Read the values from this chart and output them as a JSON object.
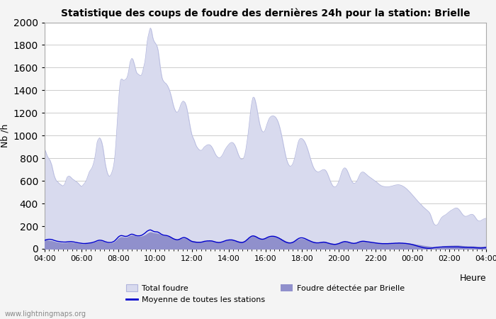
{
  "title": "Statistique des coups de foudre des dernières 24h pour la station: Brielle",
  "xlabel": "Heure",
  "ylabel": "Nb /h",
  "watermark": "www.lightningmaps.org",
  "ylim": [
    0,
    2000
  ],
  "yticks": [
    0,
    200,
    400,
    600,
    800,
    1000,
    1200,
    1400,
    1600,
    1800,
    2000
  ],
  "xtick_labels": [
    "04:00",
    "06:00",
    "08:00",
    "10:00",
    "12:00",
    "14:00",
    "16:00",
    "18:00",
    "20:00",
    "22:00",
    "00:00",
    "02:00",
    "04:00"
  ],
  "bg_color": "#f4f4f4",
  "plot_bg_color": "#ffffff",
  "total_foudre_color": "#d8daee",
  "total_foudre_edge_color": "#b0b4dc",
  "brielle_color": "#9090cc",
  "moyenne_color": "#0000cc",
  "total_foudre": [
    880,
    865,
    845,
    825,
    810,
    800,
    790,
    780,
    760,
    740,
    710,
    680,
    650,
    630,
    615,
    600,
    595,
    590,
    580,
    575,
    570,
    565,
    560,
    555,
    560,
    565,
    580,
    600,
    620,
    635,
    640,
    642,
    640,
    635,
    628,
    620,
    615,
    610,
    605,
    600,
    595,
    590,
    585,
    578,
    570,
    563,
    557,
    550,
    555,
    563,
    572,
    580,
    590,
    603,
    620,
    640,
    660,
    678,
    690,
    700,
    710,
    725,
    745,
    770,
    800,
    840,
    890,
    940,
    960,
    970,
    980,
    975,
    960,
    940,
    910,
    870,
    820,
    770,
    730,
    700,
    672,
    655,
    643,
    640,
    648,
    660,
    678,
    700,
    730,
    775,
    840,
    930,
    1040,
    1150,
    1260,
    1360,
    1440,
    1490,
    1500,
    1498,
    1492,
    1488,
    1490,
    1495,
    1500,
    1510,
    1530,
    1560,
    1600,
    1645,
    1665,
    1680,
    1680,
    1668,
    1645,
    1620,
    1590,
    1565,
    1550,
    1545,
    1540,
    1535,
    1530,
    1530,
    1540,
    1560,
    1590,
    1620,
    1650,
    1700,
    1765,
    1830,
    1870,
    1900,
    1930,
    1950,
    1940,
    1910,
    1870,
    1845,
    1830,
    1820,
    1810,
    1800,
    1780,
    1750,
    1700,
    1645,
    1590,
    1545,
    1510,
    1490,
    1480,
    1470,
    1465,
    1460,
    1450,
    1440,
    1425,
    1410,
    1390,
    1365,
    1340,
    1310,
    1280,
    1255,
    1235,
    1220,
    1210,
    1205,
    1210,
    1220,
    1235,
    1255,
    1275,
    1290,
    1300,
    1305,
    1300,
    1295,
    1280,
    1260,
    1230,
    1195,
    1155,
    1115,
    1075,
    1040,
    1010,
    990,
    975,
    960,
    940,
    920,
    905,
    895,
    885,
    878,
    872,
    870,
    870,
    873,
    880,
    892,
    900,
    905,
    910,
    915,
    918,
    920,
    920,
    918,
    913,
    905,
    895,
    882,
    868,
    852,
    838,
    826,
    817,
    810,
    806,
    804,
    805,
    810,
    818,
    828,
    840,
    855,
    870,
    882,
    893,
    903,
    912,
    920,
    928,
    934,
    938,
    940,
    939,
    934,
    926,
    915,
    900,
    882,
    862,
    842,
    825,
    810,
    800,
    792,
    790,
    793,
    800,
    815,
    840,
    875,
    920,
    968,
    1020,
    1080,
    1145,
    1210,
    1265,
    1305,
    1335,
    1340,
    1332,
    1310,
    1280,
    1245,
    1205,
    1165,
    1128,
    1096,
    1070,
    1050,
    1038,
    1032,
    1033,
    1040,
    1055,
    1078,
    1100,
    1120,
    1138,
    1152,
    1162,
    1168,
    1172,
    1174,
    1174,
    1172,
    1168,
    1162,
    1152,
    1140,
    1125,
    1105,
    1082,
    1055,
    1025,
    992,
    958,
    922,
    886,
    852,
    820,
    792,
    770,
    752,
    740,
    732,
    730,
    733,
    740,
    752,
    770,
    793,
    820,
    850,
    882,
    915,
    942,
    960,
    970,
    975,
    975,
    972,
    966,
    958,
    948,
    934,
    918,
    900,
    880,
    858,
    835,
    810,
    786,
    764,
    744,
    726,
    712,
    700,
    692,
    686,
    682,
    680,
    680,
    682,
    686,
    690,
    694,
    698,
    700,
    700,
    698,
    692,
    682,
    668,
    652,
    634,
    616,
    598,
    582,
    568,
    557,
    550,
    547,
    547,
    550,
    557,
    568,
    582,
    600,
    620,
    643,
    665,
    685,
    700,
    710,
    715,
    714,
    708,
    698,
    684,
    668,
    650,
    633,
    616,
    601,
    590,
    582,
    578,
    578,
    582,
    590,
    600,
    614,
    630,
    646,
    660,
    670,
    676,
    678,
    678,
    675,
    670,
    664,
    658,
    652,
    645,
    640,
    635,
    630,
    625,
    620,
    615,
    610,
    605,
    600,
    595,
    590,
    584,
    578,
    572,
    567,
    562,
    558,
    555,
    553,
    551,
    550,
    549,
    548,
    548,
    548,
    548,
    549,
    550,
    552,
    553,
    555,
    557,
    559,
    561,
    563,
    564,
    565,
    566,
    566,
    565,
    564,
    562,
    559,
    556,
    552,
    548,
    543,
    538,
    532,
    526,
    519,
    512,
    505,
    498,
    490,
    482,
    474,
    466,
    458,
    450,
    442,
    434,
    426,
    418,
    411,
    404,
    397,
    390,
    382,
    375,
    368,
    362,
    356,
    350,
    344,
    338,
    332,
    325,
    315,
    300,
    280,
    260,
    240,
    225,
    215,
    210,
    208,
    210,
    215,
    225,
    238,
    252,
    265,
    275,
    282,
    288,
    292,
    296,
    300,
    305,
    310,
    316,
    322,
    328,
    333,
    338,
    342,
    346,
    350,
    354,
    358,
    360,
    361,
    360,
    356,
    350,
    342,
    332,
    322,
    312,
    303,
    296,
    291,
    288,
    287,
    288,
    290,
    293,
    296,
    300,
    303,
    305,
    305,
    303,
    298,
    290,
    280,
    270,
    260,
    252,
    248,
    246,
    246,
    248,
    252,
    256,
    260,
    264,
    266,
    268,
    270
  ],
  "brielle_foudre": [
    80,
    78,
    76,
    75,
    73,
    72,
    71,
    70,
    69,
    68,
    66,
    64,
    62,
    60,
    58,
    57,
    56,
    55,
    54,
    53,
    52,
    51,
    50,
    49,
    49,
    49,
    50,
    51,
    52,
    53,
    54,
    55,
    55,
    55,
    54,
    53,
    52,
    51,
    50,
    49,
    48,
    47,
    46,
    45,
    44,
    43,
    42,
    41,
    40,
    40,
    40,
    41,
    42,
    43,
    44,
    45,
    46,
    47,
    48,
    49,
    50,
    51,
    52,
    54,
    56,
    58,
    61,
    64,
    66,
    67,
    68,
    68,
    67,
    66,
    64,
    62,
    59,
    56,
    54,
    52,
    50,
    49,
    48,
    47,
    47,
    48,
    49,
    51,
    54,
    58,
    63,
    69,
    75,
    82,
    88,
    94,
    98,
    101,
    103,
    102,
    101,
    100,
    99,
    99,
    99,
    100,
    102,
    105,
    109,
    113,
    115,
    117,
    117,
    116,
    114,
    112,
    110,
    108,
    107,
    107,
    107,
    107,
    107,
    108,
    109,
    111,
    113,
    116,
    119,
    123,
    127,
    132,
    136,
    140,
    143,
    146,
    145,
    143,
    140,
    138,
    137,
    136,
    136,
    135,
    134,
    132,
    129,
    126,
    122,
    119,
    117,
    115,
    114,
    113,
    112,
    111,
    110,
    108,
    107,
    105,
    103,
    100,
    97,
    94,
    91,
    88,
    85,
    83,
    81,
    80,
    80,
    81,
    82,
    84,
    86,
    88,
    90,
    91,
    91,
    91,
    90,
    88,
    86,
    83,
    80,
    77,
    74,
    71,
    69,
    67,
    66,
    65,
    64,
    63,
    62,
    61,
    61,
    60,
    60,
    60,
    60,
    61,
    62,
    63,
    64,
    65,
    65,
    66,
    67,
    67,
    68,
    68,
    68,
    67,
    66,
    65,
    63,
    62,
    60,
    59,
    58,
    57,
    57,
    57,
    57,
    58,
    59,
    60,
    62,
    64,
    66,
    68,
    70,
    71,
    73,
    74,
    75,
    76,
    77,
    77,
    77,
    76,
    75,
    74,
    72,
    70,
    68,
    66,
    64,
    63,
    62,
    61,
    61,
    62,
    64,
    66,
    69,
    73,
    77,
    82,
    87,
    92,
    97,
    101,
    105,
    108,
    110,
    111,
    110,
    108,
    106,
    103,
    100,
    97,
    94,
    91,
    89,
    87,
    86,
    86,
    87,
    88,
    90,
    92,
    95,
    97,
    100,
    102,
    103,
    104,
    105,
    105,
    105,
    105,
    104,
    103,
    102,
    100,
    98,
    96,
    93,
    90,
    87,
    83,
    79,
    76,
    72,
    68,
    65,
    62,
    60,
    58,
    57,
    56,
    56,
    57,
    58,
    60,
    62,
    65,
    68,
    71,
    75,
    78,
    81,
    83,
    85,
    86,
    86,
    86,
    85,
    84,
    83,
    81,
    79,
    77,
    75,
    73,
    71,
    69,
    67,
    64,
    62,
    60,
    58,
    57,
    56,
    55,
    55,
    55,
    55,
    56,
    57,
    58,
    59,
    60,
    60,
    60,
    59,
    58,
    56,
    55,
    53,
    51,
    49,
    48,
    46,
    45,
    44,
    43,
    43,
    43,
    44,
    45,
    46,
    48,
    50,
    52,
    54,
    56,
    58,
    59,
    60,
    61,
    61,
    60,
    59,
    58,
    57,
    55,
    53,
    51,
    50,
    49,
    48,
    48,
    48,
    49,
    51,
    52,
    54,
    56,
    58,
    60,
    61,
    62,
    63,
    63,
    63,
    62,
    62,
    61,
    60,
    59,
    58,
    57,
    56,
    55,
    54,
    54,
    53,
    52,
    52,
    51,
    51,
    50,
    50,
    49,
    49,
    48,
    48,
    47,
    47,
    47,
    47,
    47,
    47,
    47,
    47,
    47,
    47,
    47,
    47,
    47,
    48,
    48,
    48,
    49,
    49,
    49,
    50,
    50,
    50,
    50,
    50,
    50,
    50,
    50,
    49,
    49,
    49,
    48,
    48,
    47,
    47,
    46,
    45,
    45,
    44,
    43,
    42,
    41,
    40,
    39,
    37,
    36,
    35,
    34,
    33,
    32,
    31,
    30,
    28,
    27,
    26,
    25,
    24,
    23,
    22,
    21,
    20,
    19,
    18,
    17,
    16,
    15,
    14,
    13,
    12,
    11,
    11,
    11,
    12,
    13,
    14,
    16,
    17,
    19,
    20,
    21,
    22,
    23,
    24,
    24,
    25,
    25,
    26,
    26,
    26,
    27,
    27,
    27,
    27,
    28,
    28,
    28,
    28,
    28,
    28,
    27,
    27,
    26,
    26,
    25,
    24,
    24,
    23,
    22,
    22,
    22,
    21,
    21,
    21,
    21,
    21,
    21,
    21,
    21,
    21,
    20,
    20,
    19,
    19,
    18,
    18,
    18,
    17,
    17,
    17,
    18,
    18,
    18,
    19,
    19,
    20
  ],
  "moyenne": [
    75,
    78,
    80,
    82,
    83,
    84,
    84,
    84,
    83,
    82,
    80,
    78,
    75,
    73,
    71,
    69,
    67,
    66,
    65,
    64,
    63,
    62,
    61,
    61,
    60,
    60,
    60,
    60,
    61,
    62,
    63,
    63,
    64,
    64,
    64,
    63,
    62,
    61,
    60,
    58,
    57,
    56,
    54,
    53,
    52,
    51,
    50,
    49,
    48,
    47,
    47,
    47,
    47,
    48,
    48,
    49,
    50,
    51,
    52,
    53,
    54,
    56,
    58,
    60,
    62,
    65,
    68,
    71,
    73,
    75,
    76,
    76,
    75,
    74,
    72,
    70,
    67,
    64,
    62,
    60,
    58,
    57,
    56,
    56,
    56,
    57,
    58,
    61,
    64,
    68,
    74,
    81,
    88,
    96,
    103,
    109,
    113,
    116,
    117,
    116,
    115,
    113,
    111,
    110,
    110,
    111,
    113,
    116,
    120,
    124,
    127,
    129,
    129,
    127,
    125,
    122,
    119,
    117,
    115,
    115,
    115,
    115,
    116,
    118,
    120,
    124,
    128,
    133,
    138,
    144,
    150,
    156,
    160,
    163,
    166,
    167,
    165,
    162,
    158,
    155,
    152,
    151,
    150,
    150,
    149,
    147,
    143,
    139,
    134,
    129,
    126,
    123,
    121,
    120,
    119,
    118,
    117,
    115,
    113,
    110,
    107,
    103,
    99,
    95,
    91,
    88,
    85,
    83,
    81,
    80,
    80,
    82,
    84,
    87,
    91,
    94,
    97,
    99,
    100,
    99,
    97,
    94,
    91,
    87,
    82,
    78,
    73,
    69,
    66,
    64,
    62,
    61,
    60,
    59,
    58,
    58,
    58,
    58,
    58,
    58,
    59,
    60,
    62,
    64,
    66,
    67,
    68,
    69,
    70,
    70,
    70,
    71,
    70,
    70,
    69,
    67,
    65,
    63,
    61,
    59,
    58,
    57,
    56,
    56,
    57,
    58,
    60,
    62,
    64,
    67,
    69,
    72,
    74,
    76,
    77,
    78,
    79,
    79,
    79,
    79,
    78,
    76,
    74,
    72,
    70,
    67,
    64,
    62,
    60,
    58,
    57,
    56,
    56,
    57,
    59,
    62,
    66,
    71,
    77,
    83,
    89,
    96,
    101,
    106,
    110,
    113,
    114,
    114,
    112,
    110,
    107,
    103,
    99,
    95,
    92,
    89,
    87,
    85,
    85,
    85,
    87,
    89,
    92,
    95,
    99,
    102,
    105,
    107,
    109,
    110,
    111,
    111,
    111,
    110,
    109,
    107,
    105,
    102,
    99,
    96,
    92,
    88,
    84,
    79,
    75,
    71,
    67,
    63,
    60,
    57,
    55,
    53,
    52,
    52,
    52,
    53,
    55,
    57,
    61,
    65,
    70,
    75,
    80,
    85,
    89,
    93,
    95,
    97,
    97,
    97,
    96,
    94,
    92,
    89,
    86,
    83,
    79,
    76,
    73,
    70,
    67,
    64,
    61,
    59,
    57,
    55,
    54,
    53,
    53,
    53,
    53,
    54,
    55,
    56,
    57,
    58,
    59,
    59,
    58,
    57,
    55,
    53,
    51,
    49,
    47,
    45,
    43,
    42,
    41,
    40,
    39,
    39,
    40,
    41,
    43,
    45,
    47,
    50,
    53,
    56,
    58,
    61,
    62,
    64,
    64,
    63,
    62,
    61,
    59,
    57,
    55,
    53,
    51,
    50,
    49,
    48,
    49,
    50,
    51,
    53,
    56,
    58,
    61,
    63,
    65,
    66,
    67,
    67,
    67,
    66,
    65,
    64,
    63,
    62,
    61,
    60,
    59,
    58,
    57,
    56,
    55,
    54,
    53,
    52,
    51,
    50,
    49,
    48,
    48,
    47,
    47,
    46,
    46,
    46,
    46,
    46,
    46,
    46,
    46,
    46,
    47,
    47,
    47,
    48,
    48,
    48,
    49,
    49,
    50,
    50,
    50,
    50,
    51,
    51,
    51,
    50,
    50,
    50,
    49,
    49,
    48,
    48,
    47,
    46,
    45,
    44,
    43,
    42,
    40,
    39,
    37,
    35,
    33,
    31,
    29,
    27,
    25,
    23,
    21,
    19,
    17,
    15,
    14,
    12,
    10,
    9,
    8,
    7,
    6,
    5,
    5,
    5,
    5,
    5,
    6,
    7,
    8,
    10,
    11,
    12,
    13,
    14,
    14,
    15,
    15,
    16,
    16,
    16,
    17,
    17,
    17,
    17,
    17,
    17,
    17,
    17,
    17,
    17,
    17,
    17,
    17,
    17,
    17,
    17,
    17,
    17,
    17,
    17,
    17,
    17,
    16,
    16,
    15,
    15,
    14,
    14,
    13,
    13,
    13,
    13,
    12,
    12,
    12,
    12,
    12,
    12,
    11,
    11,
    11,
    10,
    10,
    9,
    9,
    8,
    8,
    8,
    7,
    7,
    7,
    8,
    8,
    9,
    10,
    10,
    11
  ]
}
